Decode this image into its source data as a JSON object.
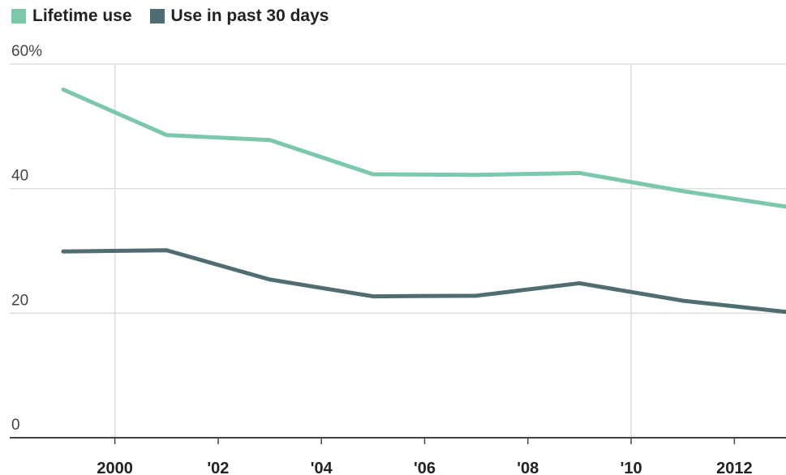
{
  "chart_data": {
    "type": "line",
    "title": "",
    "xlabel": "",
    "ylabel": "",
    "x": [
      1999,
      2001,
      2003,
      2005,
      2007,
      2009,
      2011,
      2013
    ],
    "xlim": [
      1999,
      2013
    ],
    "ylim": [
      0,
      60
    ],
    "y_ticks": [
      {
        "value": 0,
        "label": "0"
      },
      {
        "value": 20,
        "label": "20"
      },
      {
        "value": 40,
        "label": "40"
      },
      {
        "value": 60,
        "label": "60%"
      }
    ],
    "x_ticks": [
      {
        "value": 2000,
        "label": "2000"
      },
      {
        "value": 2002,
        "label": "'02"
      },
      {
        "value": 2004,
        "label": "'04"
      },
      {
        "value": 2006,
        "label": "'06"
      },
      {
        "value": 2008,
        "label": "'08"
      },
      {
        "value": 2010,
        "label": "'10"
      },
      {
        "value": 2012,
        "label": "2012"
      }
    ],
    "vertical_gridlines": [
      2000,
      2010
    ],
    "grid": true,
    "legend": "top-left",
    "series": [
      {
        "name": "Lifetime use",
        "color": "#7cc8aa",
        "values": [
          55.9,
          48.6,
          47.8,
          42.3,
          42.2,
          42.5,
          39.6,
          37.1
        ]
      },
      {
        "name": "Use in past 30 days",
        "color": "#506d74",
        "values": [
          29.9,
          30.1,
          25.4,
          22.7,
          22.8,
          24.8,
          22.0,
          20.2
        ]
      }
    ]
  }
}
